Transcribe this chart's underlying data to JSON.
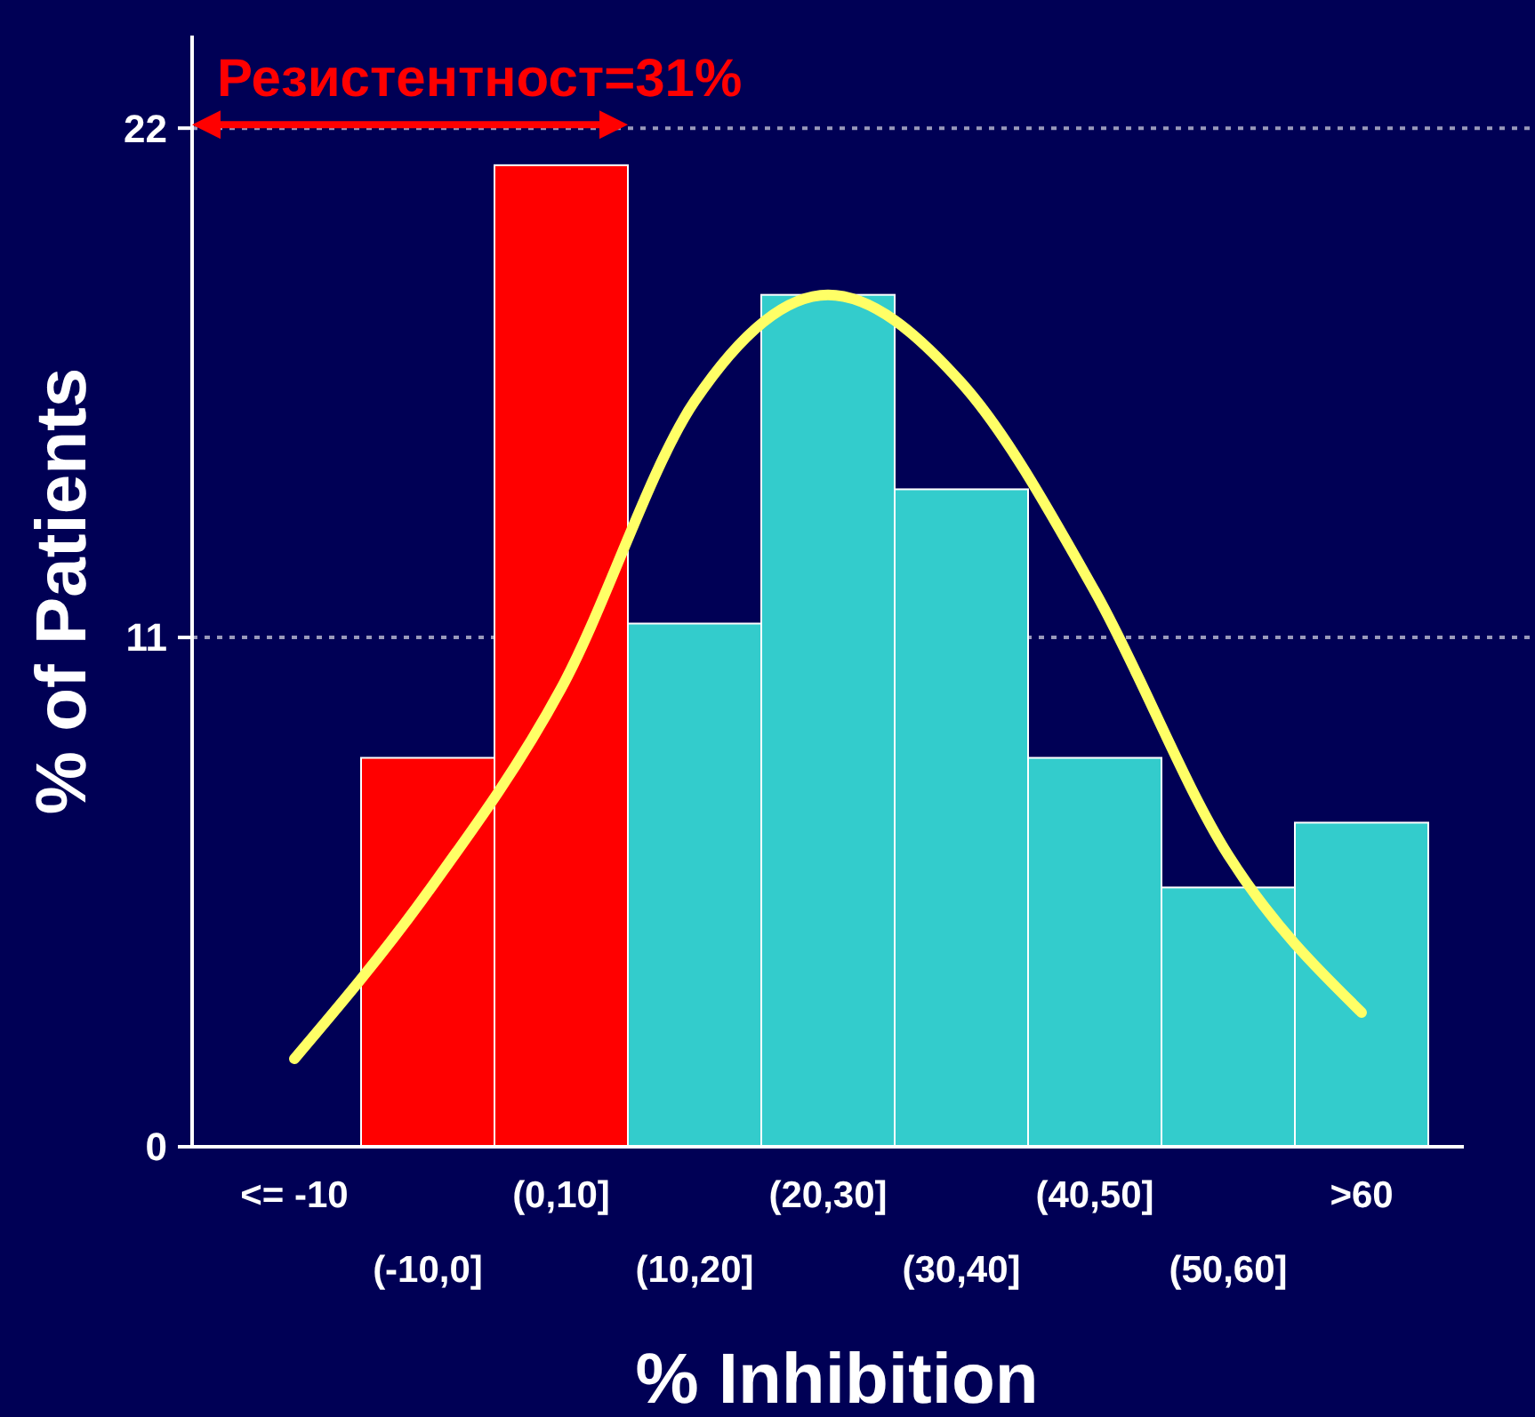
{
  "chart_data": {
    "type": "bar",
    "xlabel": "% Inhibition",
    "ylabel": "% of Patients",
    "categories": [
      "<= -10",
      "(-10,0]",
      "(0,10]",
      "(10,20]",
      "(20,30]",
      "(30,40]",
      "(40,50]",
      "(50,60]",
      ">60"
    ],
    "series": [
      {
        "values": [
          0,
          8.4,
          21.2,
          11.3,
          18.4,
          14.2,
          8.4,
          5.6,
          7.0
        ],
        "colors": [
          "#ff0000",
          "#ff0000",
          "#ff0000",
          "#33cccc",
          "#33cccc",
          "#33cccc",
          "#33cccc",
          "#33cccc",
          "#33cccc"
        ]
      },
      {
        "type": "line",
        "color": "#ffff66",
        "values": [
          1.9,
          5.5,
          9.9,
          16.1,
          18.4,
          16.5,
          12.0,
          6.3,
          2.9
        ]
      }
    ],
    "ylim": [
      0,
      24
    ],
    "yticks": [
      0,
      11,
      22
    ],
    "grid": "y",
    "annotations": [
      "Резистентност=31%"
    ]
  }
}
